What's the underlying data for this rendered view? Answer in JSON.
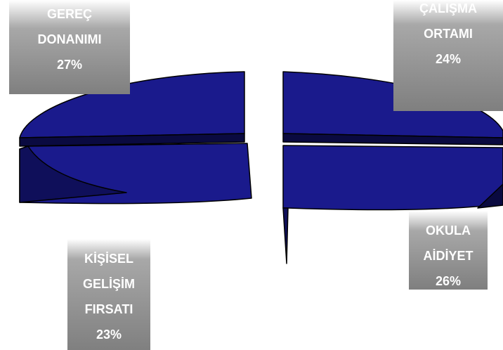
{
  "chart_data": {
    "type": "pie",
    "title": "",
    "slices": [
      {
        "label_lines": [
          "GEREÇ",
          "DONANIMI"
        ],
        "value": 27,
        "value_label": "27%"
      },
      {
        "label_lines": [
          "ÇALIŞMA",
          "ORTAMI"
        ],
        "value": 24,
        "value_label": "24%"
      },
      {
        "label_lines": [
          "OKULA",
          "AİDİYET"
        ],
        "value": 26,
        "value_label": "26%"
      },
      {
        "label_lines": [
          "KİŞİSEL",
          "GELİŞİM",
          "FIRSATI"
        ],
        "value": 23,
        "value_label": "23%"
      }
    ],
    "colors": {
      "slice_top": "#1a1a8c",
      "slice_side": "#0f0f5a",
      "slice_dark": "#0a0a40",
      "outline": "#000000",
      "label_bg": "#7f7f7f",
      "label_text": "#ffffff"
    },
    "style": "exploded-3d-pie"
  }
}
